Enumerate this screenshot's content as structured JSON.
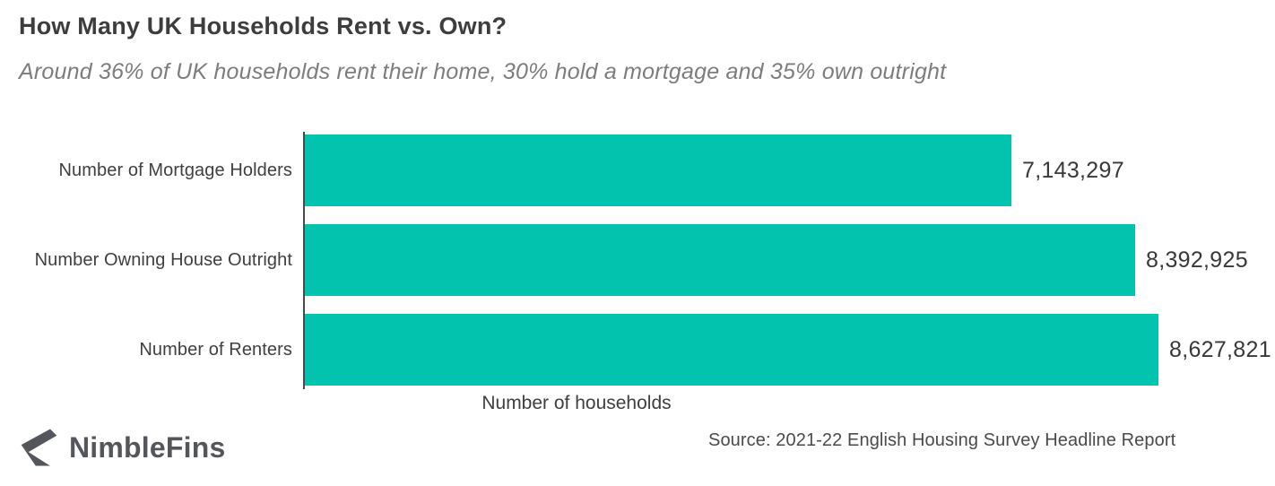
{
  "title": "How Many UK Households Rent vs. Own?",
  "subtitle": "Around 36% of UK households rent their home, 30% hold a mortgage and 35% own outright",
  "chart_data": {
    "type": "bar",
    "orientation": "horizontal",
    "categories": [
      "Number of Mortgage Holders",
      "Number Owning House Outright",
      "Number of Renters"
    ],
    "values": [
      7143297,
      8392925,
      8627821
    ],
    "value_labels": [
      "7,143,297",
      "8,392,925",
      "8,627,821"
    ],
    "xlabel": "Number of households",
    "xlim": [
      0,
      8627821
    ],
    "bar_color": "#02c3ae",
    "axis_color": "#4a4a4a",
    "grid": false,
    "legend": "none"
  },
  "footer": {
    "brand": "NimbleFins",
    "brand_icon": "nimblefins-fin-icon",
    "brand_icon_color": "#55565b",
    "source": "Source: 2021-22 English Housing Survey Headline Report"
  }
}
